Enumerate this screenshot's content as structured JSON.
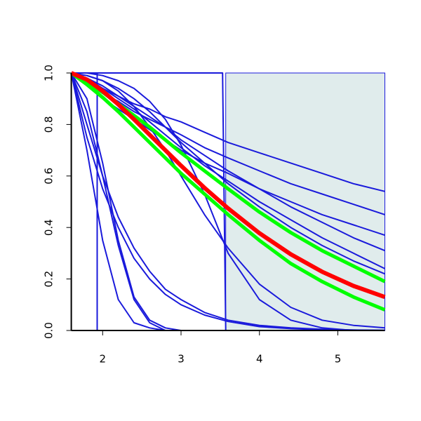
{
  "chart_data": {
    "type": "line",
    "xlim": [
      1.6,
      5.6
    ],
    "ylim": [
      0,
      1
    ],
    "xticks": [
      2,
      3,
      4,
      5
    ],
    "yticks": [
      {
        "value": 0,
        "label": "0.0"
      },
      {
        "value": 0.2,
        "label": "0.2"
      },
      {
        "value": 0.4,
        "label": "0.4"
      },
      {
        "value": 0.6,
        "label": "0.6"
      },
      {
        "value": 0.8,
        "label": "0.8"
      },
      {
        "value": 1,
        "label": "1.0"
      }
    ],
    "shaded_xrange": [
      3.57,
      5.6
    ],
    "shade_color": "#e0ecec",
    "x": [
      1.6,
      1.8,
      2.0,
      2.2,
      2.4,
      2.6,
      2.8,
      3.0,
      3.3,
      3.6,
      4.0,
      4.4,
      4.8,
      5.2,
      5.6
    ],
    "series": [
      {
        "color": "#1a1adb",
        "line_width": 2,
        "values": [
          1,
          0.97,
          0.94,
          0.91,
          0.88,
          0.86,
          0.83,
          0.81,
          0.77,
          0.73,
          0.69,
          0.65,
          0.61,
          0.57,
          0.54
        ]
      },
      {
        "color": "#1a1adb",
        "line_width": 2,
        "values": [
          1,
          0.96,
          0.92,
          0.89,
          0.85,
          0.82,
          0.79,
          0.76,
          0.71,
          0.67,
          0.62,
          0.57,
          0.53,
          0.49,
          0.45
        ]
      },
      {
        "color": "#1a1adb",
        "line_width": 2,
        "values": [
          1,
          0.95,
          0.9,
          0.86,
          0.82,
          0.78,
          0.74,
          0.7,
          0.65,
          0.61,
          0.55,
          0.5,
          0.45,
          0.41,
          0.37
        ]
      },
      {
        "color": "#1a1adb",
        "line_width": 2,
        "values": [
          1,
          0.98,
          0.95,
          0.91,
          0.87,
          0.83,
          0.79,
          0.74,
          0.68,
          0.62,
          0.55,
          0.48,
          0.42,
          0.36,
          0.31
        ]
      },
      {
        "color": "#1a1adb",
        "line_width": 2,
        "values": [
          1,
          0.98,
          0.94,
          0.9,
          0.86,
          0.81,
          0.76,
          0.71,
          0.64,
          0.58,
          0.5,
          0.43,
          0.36,
          0.3,
          0.24
        ]
      },
      {
        "color": "#1a1adb",
        "line_width": 2,
        "values": [
          1,
          0.99,
          0.97,
          0.94,
          0.9,
          0.85,
          0.79,
          0.73,
          0.65,
          0.57,
          0.48,
          0.4,
          0.33,
          0.27,
          0.22
        ]
      },
      {
        "color": "#1a1adb",
        "line_width": 2,
        "values": [
          1,
          1,
          0.99,
          0.97,
          0.94,
          0.89,
          0.82,
          0.72,
          0.53,
          0.3,
          0.12,
          0.04,
          0.01,
          0,
          0
        ]
      },
      {
        "color": "#1a1adb",
        "line_width": 2,
        "values": [
          1,
          0.99,
          0.97,
          0.93,
          0.87,
          0.79,
          0.7,
          0.6,
          0.45,
          0.32,
          0.18,
          0.09,
          0.04,
          0.02,
          0.01
        ]
      },
      {
        "color": "#1a1adb",
        "line_width": 2,
        "values": [
          1,
          0.85,
          0.6,
          0.33,
          0.12,
          0.03,
          0,
          0,
          0,
          0,
          0,
          0,
          0,
          0,
          0
        ]
      },
      {
        "color": "#1a1adb",
        "line_width": 2,
        "values": [
          1,
          0.7,
          0.35,
          0.12,
          0.03,
          0.01,
          0,
          0,
          0,
          0,
          0,
          0,
          0,
          0,
          0
        ]
      },
      {
        "color": "#1a1adb",
        "line_width": 2,
        "values": [
          1,
          0.9,
          0.65,
          0.35,
          0.13,
          0.04,
          0.01,
          0,
          0,
          0,
          0,
          0,
          0,
          0,
          0
        ]
      },
      {
        "color": "#1a1adb",
        "line_width": 2,
        "values": [
          1,
          0.75,
          0.55,
          0.4,
          0.28,
          0.2,
          0.14,
          0.1,
          0.06,
          0.035,
          0.015,
          0.007,
          0.003,
          0.001,
          0
        ]
      },
      {
        "color": "#1a1adb",
        "line_width": 2,
        "values": [
          1,
          0.8,
          0.6,
          0.44,
          0.32,
          0.23,
          0.16,
          0.12,
          0.07,
          0.04,
          0.02,
          0.01,
          0.005,
          0.002,
          0.001
        ]
      },
      {
        "color": "#1a1adb",
        "line_width": 2,
        "x": [
          1.6,
          1.93,
          1.93,
          5.6
        ],
        "values": [
          1,
          1,
          0,
          0
        ]
      },
      {
        "color": "#1a1adb",
        "line_width": 2,
        "x": [
          1.6,
          3.53,
          3.57,
          5.6
        ],
        "values": [
          1,
          1,
          0,
          0
        ]
      },
      {
        "color": "#00ff00",
        "line_width": 5,
        "values": [
          1,
          0.965,
          0.925,
          0.88,
          0.835,
          0.79,
          0.74,
          0.69,
          0.62,
          0.55,
          0.46,
          0.38,
          0.31,
          0.25,
          0.19
        ]
      },
      {
        "color": "#00ff00",
        "line_width": 5,
        "values": [
          1,
          0.955,
          0.905,
          0.85,
          0.79,
          0.73,
          0.67,
          0.61,
          0.53,
          0.45,
          0.35,
          0.26,
          0.19,
          0.13,
          0.08
        ]
      },
      {
        "color": "#ff0000",
        "line_width": 6,
        "values": [
          1,
          0.974,
          0.93,
          0.878,
          0.82,
          0.76,
          0.7,
          0.64,
          0.554,
          0.474,
          0.378,
          0.296,
          0.228,
          0.173,
          0.13
        ]
      }
    ]
  }
}
